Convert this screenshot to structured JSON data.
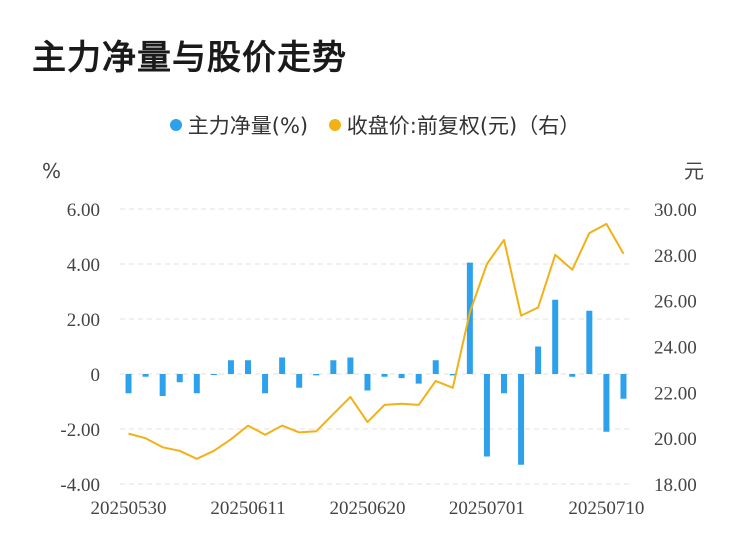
{
  "title": "主力净量与股价走势",
  "colors": {
    "bar": "#2ea1ec",
    "line": "#f2b114",
    "grid": "#e0e0e0"
  },
  "chart_data": {
    "type": "bar+line",
    "title": "主力净量与股价走势",
    "left_unit": "%",
    "right_unit": "元",
    "legend": [
      "主力净量(%)",
      "收盘价:前复权(元)（右）"
    ],
    "left_ylim": [
      -4,
      6
    ],
    "right_ylim": [
      18,
      30
    ],
    "left_ticks": [
      "6.00",
      "4.00",
      "2.00",
      "0",
      "-2.00",
      "-4.00"
    ],
    "right_ticks": [
      "30.00",
      "28.00",
      "26.00",
      "24.00",
      "22.00",
      "20.00",
      "18.00"
    ],
    "x_tick_labels": [
      "20250530",
      "20250611",
      "20250620",
      "20250701",
      "20250710"
    ],
    "x_tick_indices": [
      0,
      7,
      14,
      21,
      28
    ],
    "series": [
      {
        "name": "主力净量(%)",
        "type": "bar",
        "axis": "left",
        "values": [
          -0.7,
          -0.1,
          -0.8,
          -0.3,
          -0.7,
          0,
          0.5,
          0.5,
          -0.7,
          0.6,
          -0.5,
          -0.05,
          0.5,
          0.6,
          -0.6,
          -0.1,
          -0.15,
          -0.35,
          0.5,
          -0.05,
          4.05,
          -3.0,
          -0.7,
          -3.3,
          1.0,
          2.7,
          -0.1,
          2.3,
          -2.1,
          -0.9
        ]
      },
      {
        "name": "收盘价:前复权(元)",
        "type": "line",
        "axis": "right",
        "values": [
          20.2,
          20.0,
          19.6,
          19.45,
          19.1,
          19.45,
          19.95,
          20.55,
          20.15,
          20.55,
          20.25,
          20.3,
          21.05,
          21.8,
          20.7,
          21.45,
          21.5,
          21.45,
          22.5,
          22.2,
          25.5,
          27.6,
          28.65,
          25.35,
          25.7,
          28.0,
          27.35,
          28.95,
          29.35,
          28.05
        ]
      }
    ]
  }
}
